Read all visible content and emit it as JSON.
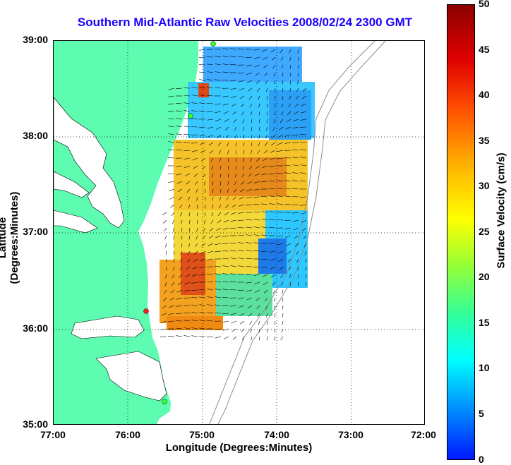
{
  "title": "Southern Mid-Atlantic Raw Velocities 2008/02/24 2300 GMT",
  "xlabel": "Longitude (Degrees:Minutes)",
  "ylabel": "Latitude (Degrees:Minutes)",
  "colorbar_label": "Surface Velocity (cm/s)",
  "x_ticks": [
    "77:00",
    "76:00",
    "75:00",
    "74:00",
    "73:00",
    "72:00"
  ],
  "y_ticks": [
    "39:00",
    "38:00",
    "37:00",
    "36:00",
    "35:00"
  ],
  "colorbar_ticks": [
    "50",
    "45",
    "40",
    "35",
    "30",
    "25",
    "20",
    "15",
    "10",
    "5",
    "0"
  ],
  "colors": {
    "land": "#5dfcb0",
    "water": "#ffffff",
    "title": "#1a00ff",
    "vectors": "#000000",
    "bathymetry": "#8c8c8c"
  },
  "chart_data": {
    "type": "heatmap",
    "xlim": [
      -77,
      -72
    ],
    "ylim": [
      35,
      39
    ],
    "colorbar_range": [
      0,
      50
    ],
    "grid": true,
    "stations": [
      {
        "lon": -74.87,
        "lat": 38.95,
        "color": "green"
      },
      {
        "lon": -75.1,
        "lat": 38.2,
        "color": "green"
      },
      {
        "lon": -75.75,
        "lat": 36.2,
        "color": "red"
      },
      {
        "lon": -75.5,
        "lat": 35.25,
        "color": "green"
      }
    ]
  }
}
